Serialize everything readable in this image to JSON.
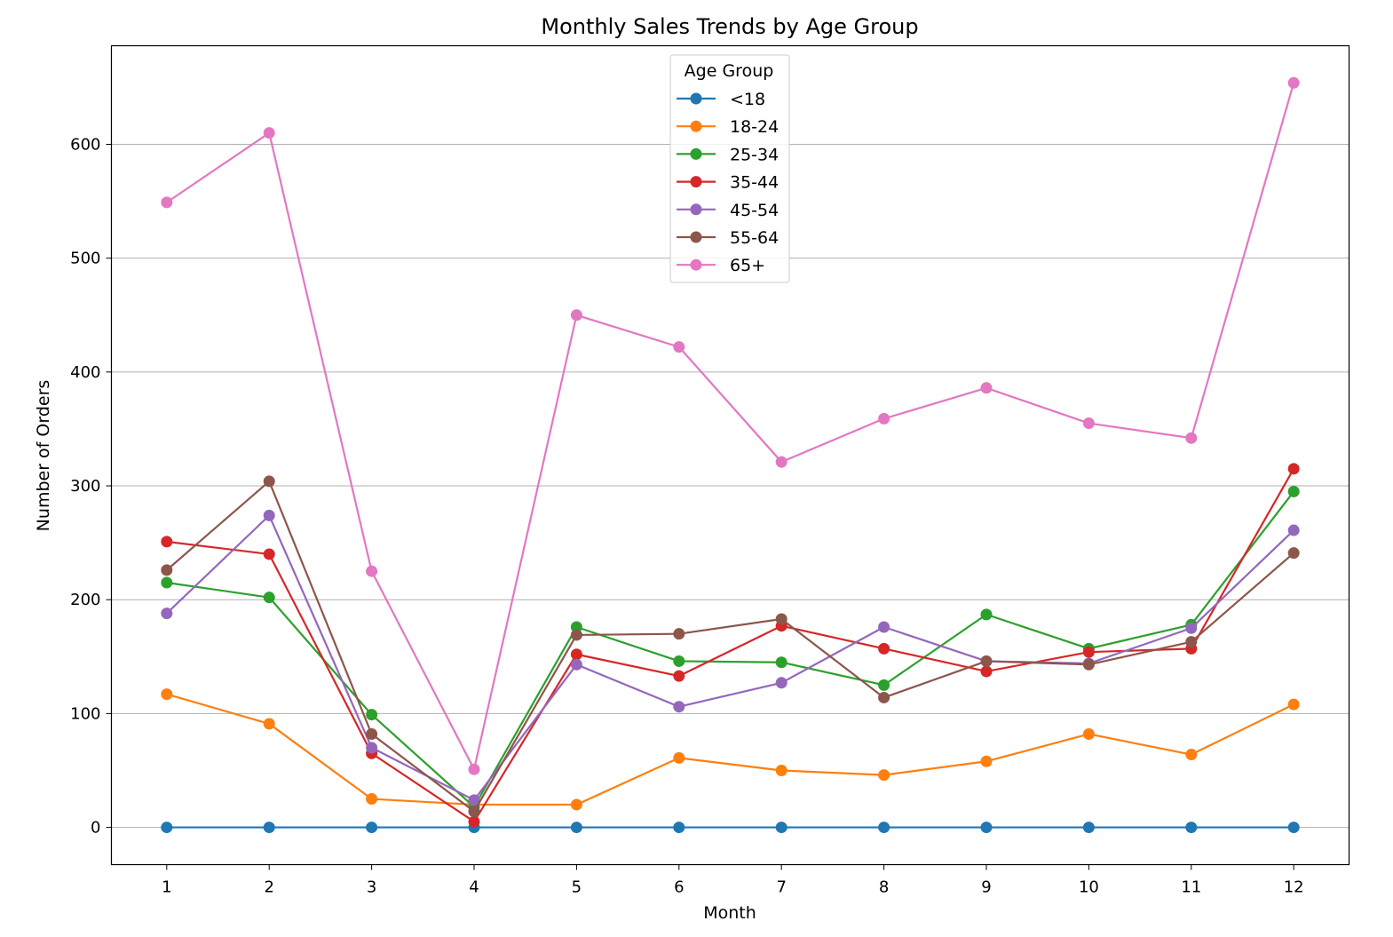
{
  "chart_data": {
    "type": "line",
    "title": "Monthly Sales Trends by Age Group",
    "xlabel": "Month",
    "ylabel": "Number of Orders",
    "x": [
      1,
      2,
      3,
      4,
      5,
      6,
      7,
      8,
      9,
      10,
      11,
      12
    ],
    "xlim": [
      0.46,
      12.54
    ],
    "ylim": [
      -32.7,
      686.6
    ],
    "yticks": [
      0,
      100,
      200,
      300,
      400,
      500,
      600
    ],
    "grid": "y",
    "legend": {
      "title": "Age Group",
      "placement": "top-center"
    },
    "series": [
      {
        "name": "<18",
        "color": "#1f77b4",
        "values": [
          0,
          0,
          0,
          0,
          0,
          0,
          0,
          0,
          0,
          0,
          0,
          0
        ]
      },
      {
        "name": "18-24",
        "color": "#ff7f0e",
        "values": [
          117,
          91,
          25,
          20,
          20,
          61,
          50,
          46,
          58,
          82,
          64,
          108
        ]
      },
      {
        "name": "25-34",
        "color": "#2ca02c",
        "values": [
          215,
          202,
          99,
          18,
          176,
          146,
          145,
          125,
          187,
          157,
          178,
          295
        ]
      },
      {
        "name": "35-44",
        "color": "#d62728",
        "values": [
          251,
          240,
          65,
          5,
          152,
          133,
          177,
          157,
          137,
          154,
          157,
          315
        ]
      },
      {
        "name": "45-54",
        "color": "#9467bd",
        "values": [
          188,
          274,
          70,
          24,
          143,
          106,
          127,
          176,
          146,
          144,
          175,
          261
        ]
      },
      {
        "name": "55-64",
        "color": "#8c564b",
        "values": [
          226,
          304,
          82,
          14,
          169,
          170,
          183,
          114,
          146,
          143,
          163,
          241
        ]
      },
      {
        "name": "65+",
        "color": "#e377c2",
        "values": [
          549,
          610,
          225,
          51,
          450,
          422,
          321,
          359,
          386,
          355,
          342,
          654
        ]
      }
    ]
  }
}
